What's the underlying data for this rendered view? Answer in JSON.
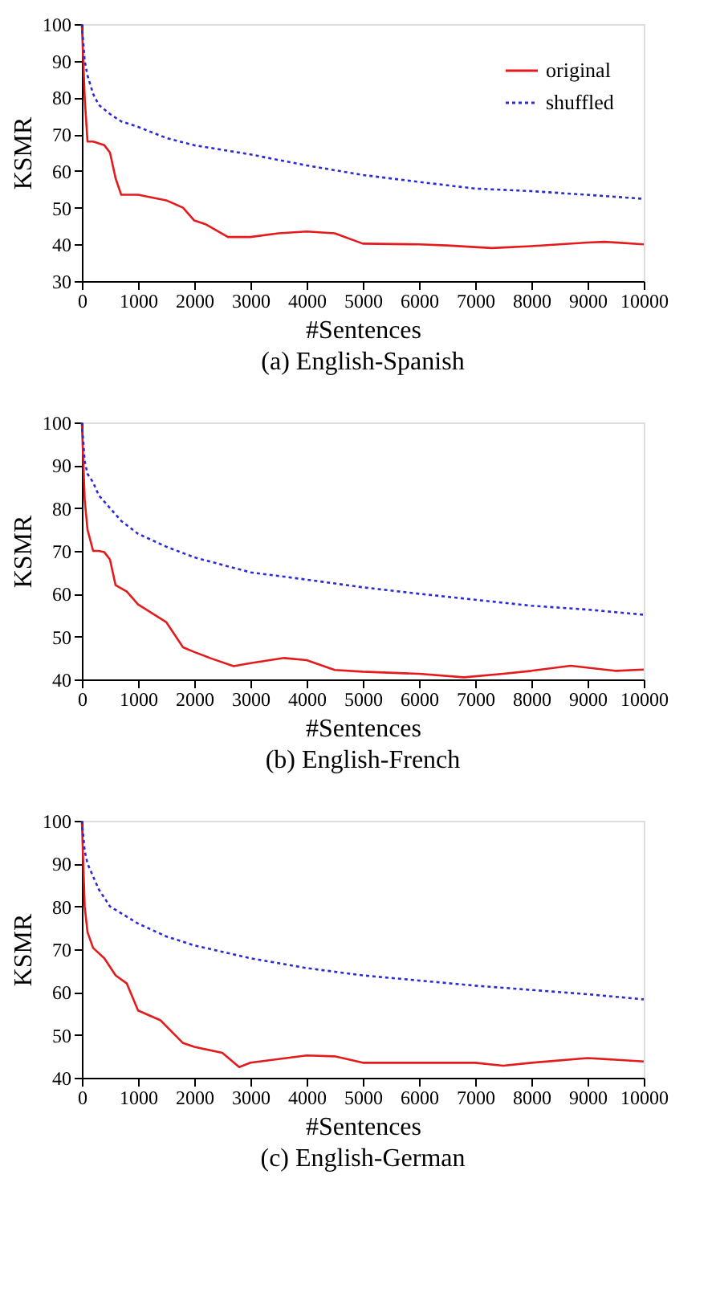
{
  "chart_data": [
    {
      "type": "line",
      "title": "(a) English-Spanish",
      "xlabel": "#Sentences",
      "ylabel": "KSMR",
      "xlim": [
        0,
        10000
      ],
      "xticks": [
        0,
        1000,
        2000,
        3000,
        4000,
        5000,
        6000,
        7000,
        8000,
        9000,
        10000
      ],
      "ylim": [
        30,
        100
      ],
      "yticks": [
        30,
        40,
        50,
        60,
        70,
        80,
        90,
        100
      ],
      "grid": false,
      "legend": "top right",
      "marker": "none",
      "series": [
        {
          "name": "original",
          "color": "#e41a1c",
          "line_style": "solid",
          "x": [
            0,
            50,
            100,
            200,
            300,
            400,
            500,
            600,
            700,
            1000,
            1500,
            1800,
            2000,
            2200,
            2600,
            3000,
            3500,
            4000,
            4500,
            5000,
            6000,
            6500,
            7300,
            8000,
            9000,
            9300,
            10000
          ],
          "values": [
            100,
            80,
            68,
            68,
            67.5,
            67,
            65,
            58,
            53.5,
            53.5,
            52,
            50,
            46.5,
            45.5,
            42,
            42,
            43,
            43.5,
            43,
            40.2,
            40,
            39.7,
            39,
            39.5,
            40.5,
            40.7,
            40
          ]
        },
        {
          "name": "shuffled",
          "color": "#2b2bd6",
          "line_style": "dotted",
          "x": [
            0,
            50,
            100,
            200,
            300,
            500,
            700,
            1000,
            1500,
            2000,
            3000,
            4000,
            5000,
            6000,
            7000,
            8000,
            9000,
            10000
          ],
          "values": [
            100,
            90,
            86,
            81,
            78,
            75.5,
            73.5,
            72,
            69,
            67,
            64.5,
            61.5,
            58.9,
            57,
            55.2,
            54.5,
            53.5,
            52.4
          ]
        }
      ]
    },
    {
      "type": "line",
      "title": "(b) English-French",
      "xlabel": "#Sentences",
      "ylabel": "KSMR",
      "xlim": [
        0,
        10000
      ],
      "xticks": [
        0,
        1000,
        2000,
        3000,
        4000,
        5000,
        6000,
        7000,
        8000,
        9000,
        10000
      ],
      "ylim": [
        40,
        100
      ],
      "yticks": [
        40,
        50,
        60,
        70,
        80,
        90,
        100
      ],
      "grid": false,
      "legend": "top right",
      "marker": "none",
      "series": [
        {
          "name": "original",
          "color": "#e41a1c",
          "line_style": "solid",
          "x": [
            0,
            50,
            100,
            200,
            300,
            400,
            500,
            600,
            800,
            1000,
            1500,
            1800,
            2000,
            2300,
            2700,
            3000,
            3600,
            4000,
            4500,
            5000,
            6000,
            6800,
            7500,
            8000,
            8700,
            9500,
            10000
          ],
          "values": [
            100,
            82,
            75,
            70,
            70,
            69.7,
            68,
            62,
            60.5,
            57.5,
            53.4,
            47.5,
            46.4,
            44.9,
            43.1,
            43.8,
            45,
            44.5,
            42.2,
            41.8,
            41.3,
            40.5,
            41.3,
            42,
            43.2,
            42,
            42.3
          ]
        },
        {
          "name": "shuffled",
          "color": "#2b2bd6",
          "line_style": "dotted",
          "x": [
            0,
            50,
            100,
            200,
            300,
            500,
            700,
            1000,
            1500,
            2000,
            3000,
            4000,
            5000,
            6000,
            7000,
            8000,
            9000,
            10000
          ],
          "values": [
            100,
            91,
            88,
            86,
            83,
            80,
            77,
            74,
            71,
            68.5,
            65,
            63.3,
            61.5,
            60,
            58.6,
            57.2,
            56.3,
            55.1
          ]
        }
      ]
    },
    {
      "type": "line",
      "title": "(c) English-German",
      "xlabel": "#Sentences",
      "ylabel": "KSMR",
      "xlim": [
        0,
        10000
      ],
      "xticks": [
        0,
        1000,
        2000,
        3000,
        4000,
        5000,
        6000,
        7000,
        8000,
        9000,
        10000
      ],
      "ylim": [
        40,
        100
      ],
      "yticks": [
        40,
        50,
        60,
        70,
        80,
        90,
        100
      ],
      "grid": false,
      "legend": "top right",
      "marker": "none",
      "series": [
        {
          "name": "original",
          "color": "#e41a1c",
          "line_style": "solid",
          "x": [
            0,
            50,
            100,
            200,
            400,
            600,
            800,
            1000,
            1400,
            1800,
            2000,
            2500,
            2800,
            3000,
            4000,
            4500,
            5000,
            6000,
            7000,
            7500,
            8000,
            9000,
            10000
          ],
          "values": [
            100,
            80,
            74,
            70.3,
            67.9,
            63.9,
            62,
            55.7,
            53.4,
            48.1,
            47.2,
            45.8,
            42.5,
            43.5,
            45.2,
            45,
            43.5,
            43.5,
            43.5,
            42.8,
            43.5,
            44.6,
            43.8
          ]
        },
        {
          "name": "shuffled",
          "color": "#2b2bd6",
          "line_style": "dotted",
          "x": [
            0,
            50,
            100,
            300,
            500,
            1000,
            1500,
            2000,
            3000,
            4000,
            5000,
            6000,
            7000,
            8000,
            9000,
            10000
          ],
          "values": [
            100,
            93,
            90,
            84,
            80,
            76,
            73,
            70.9,
            67.9,
            65.6,
            63.9,
            62.7,
            61.5,
            60.5,
            59.5,
            58.3
          ]
        }
      ]
    }
  ]
}
